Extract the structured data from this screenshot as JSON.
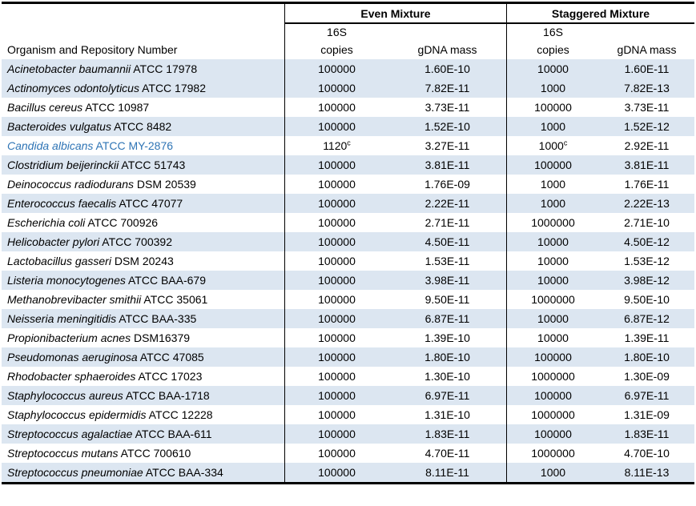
{
  "table": {
    "groups": {
      "even": "Even Mixture",
      "staggered": "Staggered Mixture"
    },
    "headers": {
      "organism": "Organism and Repository Number",
      "sub16s": "16S",
      "copies": "copies",
      "mass": "gDNA mass"
    },
    "colors": {
      "band": "#DCE6F1",
      "highlight_text": "#2E74B5",
      "border": "#000000"
    },
    "rows": [
      {
        "species": "Acinetobacter baumannii",
        "strain": "ATCC 17978",
        "even_copies": "100000",
        "even_copies_sup": "",
        "even_mass": "1.60E-10",
        "stag_copies": "10000",
        "stag_copies_sup": "",
        "stag_mass": "1.60E-11",
        "shaded": true,
        "highlight": false
      },
      {
        "species": "Actinomyces odontolyticus",
        "strain": "ATCC 17982",
        "even_copies": "100000",
        "even_copies_sup": "",
        "even_mass": "7.82E-11",
        "stag_copies": "1000",
        "stag_copies_sup": "",
        "stag_mass": "7.82E-13",
        "shaded": true,
        "highlight": false
      },
      {
        "species": "Bacillus cereus",
        "strain": "ATCC 10987",
        "even_copies": "100000",
        "even_copies_sup": "",
        "even_mass": "3.73E-11",
        "stag_copies": "100000",
        "stag_copies_sup": "",
        "stag_mass": "3.73E-11",
        "shaded": false,
        "highlight": false
      },
      {
        "species": "Bacteroides vulgatus",
        "strain": "ATCC 8482",
        "even_copies": "100000",
        "even_copies_sup": "",
        "even_mass": "1.52E-10",
        "stag_copies": "1000",
        "stag_copies_sup": "",
        "stag_mass": "1.52E-12",
        "shaded": true,
        "highlight": false
      },
      {
        "species": "Candida albicans",
        "strain": "ATCC MY-2876",
        "even_copies": "1120",
        "even_copies_sup": "c",
        "even_mass": "3.27E-11",
        "stag_copies": "1000",
        "stag_copies_sup": "c",
        "stag_mass": "2.92E-11",
        "shaded": false,
        "highlight": true
      },
      {
        "species": "Clostridium beijerinckii",
        "strain": "ATCC 51743",
        "even_copies": "100000",
        "even_copies_sup": "",
        "even_mass": "3.81E-11",
        "stag_copies": "100000",
        "stag_copies_sup": "",
        "stag_mass": "3.81E-11",
        "shaded": true,
        "highlight": false
      },
      {
        "species": "Deinococcus radiodurans",
        "strain": "DSM 20539",
        "even_copies": "100000",
        "even_copies_sup": "",
        "even_mass": "1.76E-09",
        "stag_copies": "1000",
        "stag_copies_sup": "",
        "stag_mass": "1.76E-11",
        "shaded": false,
        "highlight": false
      },
      {
        "species": "Enterococcus faecalis",
        "strain": "ATCC 47077",
        "even_copies": "100000",
        "even_copies_sup": "",
        "even_mass": "2.22E-11",
        "stag_copies": "1000",
        "stag_copies_sup": "",
        "stag_mass": "2.22E-13",
        "shaded": true,
        "highlight": false
      },
      {
        "species": "Escherichia coli",
        "strain": "ATCC 700926",
        "even_copies": "100000",
        "even_copies_sup": "",
        "even_mass": "2.71E-11",
        "stag_copies": "1000000",
        "stag_copies_sup": "",
        "stag_mass": "2.71E-10",
        "shaded": false,
        "highlight": false
      },
      {
        "species": "Helicobacter pylori",
        "strain": "ATCC 700392",
        "even_copies": "100000",
        "even_copies_sup": "",
        "even_mass": "4.50E-11",
        "stag_copies": "10000",
        "stag_copies_sup": "",
        "stag_mass": "4.50E-12",
        "shaded": true,
        "highlight": false
      },
      {
        "species": "Lactobacillus gasseri",
        "strain": "DSM 20243",
        "even_copies": "100000",
        "even_copies_sup": "",
        "even_mass": "1.53E-11",
        "stag_copies": "10000",
        "stag_copies_sup": "",
        "stag_mass": "1.53E-12",
        "shaded": false,
        "highlight": false
      },
      {
        "species": "Listeria monocytogenes",
        "strain": "ATCC BAA-679",
        "even_copies": "100000",
        "even_copies_sup": "",
        "even_mass": "3.98E-11",
        "stag_copies": "10000",
        "stag_copies_sup": "",
        "stag_mass": "3.98E-12",
        "shaded": true,
        "highlight": false
      },
      {
        "species": "Methanobrevibacter smithii",
        "strain": "ATCC 35061",
        "even_copies": "100000",
        "even_copies_sup": "",
        "even_mass": "9.50E-11",
        "stag_copies": "1000000",
        "stag_copies_sup": "",
        "stag_mass": "9.50E-10",
        "shaded": false,
        "highlight": false
      },
      {
        "species": "Neisseria meningitidis",
        "strain": "ATCC BAA-335",
        "even_copies": "100000",
        "even_copies_sup": "",
        "even_mass": "6.87E-11",
        "stag_copies": "10000",
        "stag_copies_sup": "",
        "stag_mass": "6.87E-12",
        "shaded": true,
        "highlight": false
      },
      {
        "species": "Propionibacterium acnes",
        "strain": "DSM16379",
        "even_copies": "100000",
        "even_copies_sup": "",
        "even_mass": "1.39E-10",
        "stag_copies": "10000",
        "stag_copies_sup": "",
        "stag_mass": "1.39E-11",
        "shaded": false,
        "highlight": false
      },
      {
        "species": "Pseudomonas aeruginosa",
        "strain": "ATCC 47085",
        "even_copies": "100000",
        "even_copies_sup": "",
        "even_mass": "1.80E-10",
        "stag_copies": "100000",
        "stag_copies_sup": "",
        "stag_mass": "1.80E-10",
        "shaded": true,
        "highlight": false
      },
      {
        "species": "Rhodobacter sphaeroides",
        "strain": "ATCC 17023",
        "even_copies": "100000",
        "even_copies_sup": "",
        "even_mass": "1.30E-10",
        "stag_copies": "1000000",
        "stag_copies_sup": "",
        "stag_mass": "1.30E-09",
        "shaded": false,
        "highlight": false
      },
      {
        "species": "Staphylococcus aureus",
        "strain": "ATCC BAA-1718",
        "even_copies": "100000",
        "even_copies_sup": "",
        "even_mass": "6.97E-11",
        "stag_copies": "100000",
        "stag_copies_sup": "",
        "stag_mass": "6.97E-11",
        "shaded": true,
        "highlight": false
      },
      {
        "species": "Staphylococcus epidermidis",
        "strain": "ATCC 12228",
        "even_copies": "100000",
        "even_copies_sup": "",
        "even_mass": "1.31E-10",
        "stag_copies": "1000000",
        "stag_copies_sup": "",
        "stag_mass": "1.31E-09",
        "shaded": false,
        "highlight": false
      },
      {
        "species": "Streptococcus agalactiae",
        "strain": "ATCC BAA-611",
        "even_copies": "100000",
        "even_copies_sup": "",
        "even_mass": "1.83E-11",
        "stag_copies": "100000",
        "stag_copies_sup": "",
        "stag_mass": "1.83E-11",
        "shaded": true,
        "highlight": false
      },
      {
        "species": "Streptococcus mutans",
        "strain": "ATCC 700610",
        "even_copies": "100000",
        "even_copies_sup": "",
        "even_mass": "4.70E-11",
        "stag_copies": "1000000",
        "stag_copies_sup": "",
        "stag_mass": "4.70E-10",
        "shaded": false,
        "highlight": false
      },
      {
        "species": "Streptococcus pneumoniae",
        "strain": "ATCC BAA-334",
        "even_copies": "100000",
        "even_copies_sup": "",
        "even_mass": "8.11E-11",
        "stag_copies": "1000",
        "stag_copies_sup": "",
        "stag_mass": "8.11E-13",
        "shaded": true,
        "highlight": false
      }
    ]
  }
}
